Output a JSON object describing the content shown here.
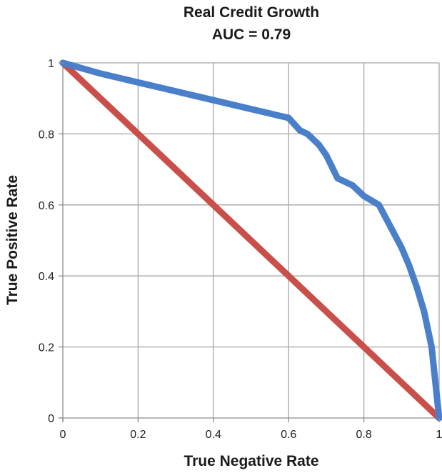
{
  "chart_data": {
    "type": "line",
    "title": "Real Credit Growth",
    "subtitle": "AUC = 0.79",
    "xlabel": "True Negative Rate",
    "ylabel": "True Positive Rate",
    "xlim": [
      0,
      1
    ],
    "ylim": [
      0,
      1
    ],
    "x_ticks": [
      "0",
      "0.2",
      "0.4",
      "0.6",
      "0.8",
      "1"
    ],
    "y_ticks": [
      "0",
      "0.2",
      "0.4",
      "0.6",
      "0.8",
      "1"
    ],
    "grid": true,
    "legend": "none",
    "series": [
      {
        "color": "#4a7fc9",
        "x": [
          0,
          0.1,
          0.2,
          0.3,
          0.4,
          0.5,
          0.6,
          0.63,
          0.65,
          0.68,
          0.7,
          0.73,
          0.77,
          0.8,
          0.84,
          0.87,
          0.9,
          0.92,
          0.94,
          0.96,
          0.98,
          0.99,
          1.0
        ],
        "y": [
          1.0,
          0.97,
          0.945,
          0.92,
          0.895,
          0.87,
          0.845,
          0.81,
          0.8,
          0.77,
          0.74,
          0.675,
          0.655,
          0.625,
          0.6,
          0.54,
          0.48,
          0.43,
          0.37,
          0.3,
          0.2,
          0.1,
          0.0
        ]
      },
      {
        "color": "#c9504a",
        "x": [
          0,
          1
        ],
        "y": [
          1,
          0
        ]
      }
    ]
  }
}
